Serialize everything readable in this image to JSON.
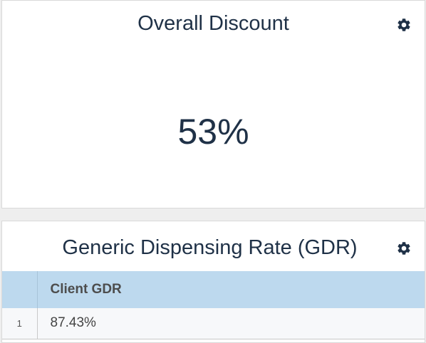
{
  "discount_card": {
    "title": "Overall Discount",
    "value": "53%",
    "settings_icon": "gear-icon"
  },
  "gdr_card": {
    "title": "Generic Dispensing Rate (GDR)",
    "settings_icon": "gear-icon",
    "table": {
      "columns": [
        "Client GDR"
      ],
      "rows": [
        {
          "row_number": "1",
          "values": [
            "87.43%"
          ]
        }
      ]
    }
  },
  "colors": {
    "title_text": "#1f3147",
    "header_bg": "#bdd9ee",
    "card_bg": "#ffffff",
    "page_bg": "#eeeeee"
  }
}
